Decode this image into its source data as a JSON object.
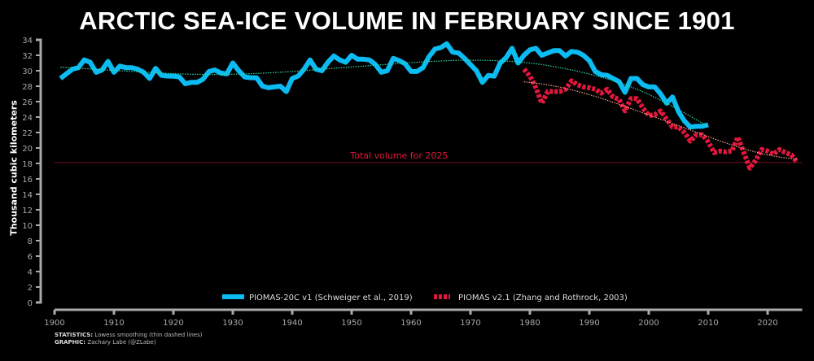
{
  "chart_data": {
    "type": "line",
    "title": "ARCTIC SEA-ICE VOLUME IN FEBRUARY SINCE 1901",
    "ylabel": "Thousand cubic kilometers",
    "xlabel": "",
    "xlim": [
      1900,
      2025
    ],
    "ylim": [
      0,
      34
    ],
    "xticks": [
      1900,
      1910,
      1920,
      1930,
      1940,
      1950,
      1960,
      1970,
      1980,
      1990,
      2000,
      2010,
      2020
    ],
    "yticks": [
      0,
      2,
      4,
      6,
      8,
      10,
      12,
      14,
      16,
      18,
      20,
      22,
      24,
      26,
      28,
      30,
      32,
      34
    ],
    "grid": false,
    "legend_position": "bottom-center",
    "series": [
      {
        "name": "PIOMAS-20C v1 (Schweiger et al., 2019)",
        "color": "#0bbcf2",
        "style": "solid",
        "x_start": 1901,
        "values": [
          29.0,
          29.6,
          30.2,
          30.4,
          31.4,
          31.1,
          29.8,
          30.1,
          31.2,
          29.8,
          30.6,
          30.4,
          30.4,
          30.2,
          29.8,
          29.0,
          30.3,
          29.4,
          29.3,
          29.3,
          29.2,
          28.3,
          28.5,
          28.5,
          28.9,
          29.9,
          30.1,
          29.7,
          29.6,
          31.0,
          30.0,
          29.2,
          29.1,
          29.1,
          28.0,
          27.8,
          27.9,
          28.0,
          27.3,
          29.0,
          29.3,
          30.2,
          31.4,
          30.2,
          30.0,
          31.1,
          31.9,
          31.4,
          31.1,
          32.0,
          31.5,
          31.5,
          31.4,
          30.8,
          29.8,
          30.0,
          31.6,
          31.3,
          30.9,
          29.9,
          29.9,
          30.4,
          31.8,
          32.8,
          33.0,
          33.5,
          32.4,
          32.3,
          31.6,
          30.8,
          30.0,
          28.5,
          29.4,
          29.3,
          31.0,
          31.7,
          32.9,
          31.0,
          32.0,
          32.7,
          32.9,
          32.0,
          32.3,
          32.6,
          32.6,
          31.9,
          32.5,
          32.4,
          32.0,
          31.3,
          29.9,
          29.5,
          29.4,
          29.0,
          28.6,
          27.2,
          29.0,
          29.0,
          28.2,
          27.9,
          27.9,
          27.0,
          25.8,
          26.6,
          24.7,
          23.5,
          22.7,
          22.8,
          22.8,
          23.0
        ],
        "smooth_color": "#33d6a6"
      },
      {
        "name": "PIOMAS v2.1 (Zhang and Rothrock, 2003)",
        "color": "#e3173e",
        "style": "dashed",
        "x_start": 1979,
        "values": [
          30.2,
          29.3,
          27.8,
          25.8,
          27.3,
          27.3,
          27.3,
          27.6,
          28.7,
          28.2,
          27.9,
          27.8,
          27.6,
          27.1,
          27.6,
          26.6,
          26.3,
          24.8,
          26.4,
          26.4,
          25.2,
          24.2,
          24.3,
          24.8,
          23.7,
          22.7,
          22.7,
          22.0,
          20.9,
          21.7,
          21.7,
          20.8,
          19.4,
          19.6,
          19.5,
          19.6,
          21.4,
          19.4,
          17.4,
          18.4,
          19.8,
          19.6,
          19.2,
          19.8,
          19.4,
          19.1,
          18.1
        ],
        "smooth_color": "#f2a488"
      }
    ],
    "annotations": [
      {
        "text": "Total volume for 2025",
        "value": 18.1,
        "color": "#e3173e"
      }
    ],
    "footer": {
      "statistics_label": "STATISTICS:",
      "statistics_text": "Lowess smoothing (thin dashed lines)",
      "graphic_label": "GRAPHIC:",
      "graphic_text": "Zachary Labe (@ZLabe)"
    }
  }
}
